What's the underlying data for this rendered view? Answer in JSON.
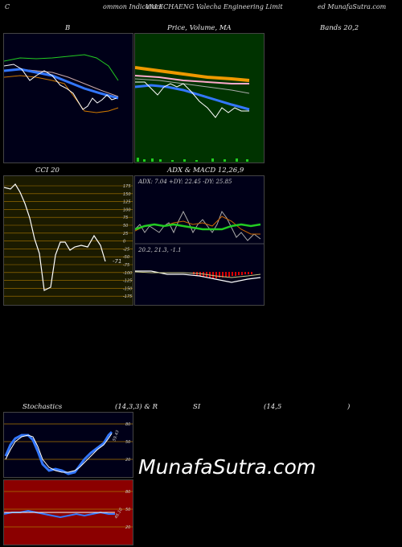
{
  "header": {
    "left": "C",
    "mid1": "ommon  Indicators",
    "mid2": "VALECHAENG Valecha  Engineering Limit",
    "right": "ed MunafaSutra.com"
  },
  "panels": {
    "b": {
      "title": "B"
    },
    "price": {
      "title": "Price,  Volume,  MA",
      "title2": "Volume"
    },
    "bands": {
      "title": "Bands 20,2"
    },
    "cci": {
      "title": "CCI 20",
      "value_label": "-71",
      "ticks": [
        "175",
        "150",
        "125",
        "100",
        "75",
        "50",
        "25",
        "0",
        "-25",
        "-50",
        "-75",
        "-100",
        "-125",
        "-150",
        "-175"
      ]
    },
    "adx": {
      "title": "ADX  & MACD 12,26,9",
      "adx_label": "ADX: 7.04   +DY: 22.45  -DY: 25.85",
      "macd_label": "20.2,  21.3,  -1.1"
    },
    "stoch": {
      "title_left": "Stochastics",
      "title_mid": "(14,3,3) & R",
      "title_rsi": "SI",
      "title_rsi_params": "(14,5",
      "title_end": ")",
      "ticks": [
        "80",
        "50",
        "20"
      ],
      "value_label": "59.43"
    },
    "rsi": {
      "ticks": [
        "80",
        "50",
        "20"
      ],
      "value_label": "46.10"
    }
  },
  "watermark": "MunafaSutra.com",
  "colors": {
    "panel_dark": "#000018",
    "panel_green": "#003300",
    "panel_red": "#8b0000",
    "accent_blue": "#3377ff"
  }
}
